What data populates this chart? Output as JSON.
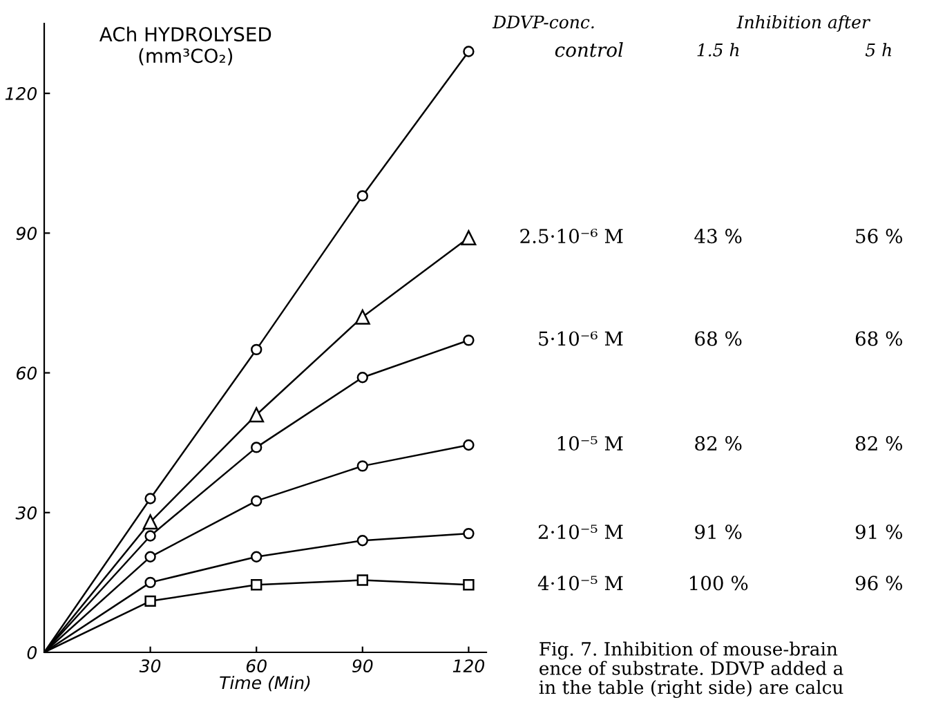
{
  "chart_data": {
    "type": "line",
    "ylabel": "ACh HYDROLYSED\n(mm³CO₂)",
    "xlabel": "Time (Min)",
    "x": [
      0,
      30,
      60,
      90,
      120
    ],
    "series": [
      {
        "name": "control",
        "color": "#000000",
        "marker": "circle",
        "values": [
          0,
          33,
          65,
          98,
          129
        ]
      },
      {
        "name": "2.5·10⁻⁶ M",
        "color": "#000000",
        "marker": "triangle",
        "values": [
          0,
          28,
          51,
          72,
          89
        ]
      },
      {
        "name": "5·10⁻⁶ M",
        "color": "#000000",
        "marker": "circle",
        "values": [
          0,
          25,
          44,
          59,
          67
        ]
      },
      {
        "name": "10⁻⁵ M",
        "color": "#000000",
        "marker": "circle",
        "values": [
          0,
          20.5,
          32.5,
          40,
          44.5
        ]
      },
      {
        "name": "2·10⁻⁵ M",
        "color": "#000000",
        "marker": "circle",
        "values": [
          0,
          15,
          20.5,
          24,
          25.5
        ]
      },
      {
        "name": "4·10⁻⁵ M",
        "color": "#000000",
        "marker": "square",
        "values": [
          0,
          11,
          14.5,
          15.5,
          14.5
        ]
      }
    ],
    "xlim": [
      0,
      125
    ],
    "ylim": [
      0,
      135
    ],
    "xticks": [
      30,
      60,
      90,
      120
    ],
    "yticks": [
      0,
      30,
      60,
      90,
      120
    ],
    "grid": false,
    "legend": false,
    "annotations": [
      "DDVP-conc.",
      "Inhibition after",
      "1.5 h",
      "5 h",
      "43 %",
      "56 %",
      "68 %",
      "68 %",
      "82 %",
      "82 %",
      "91 %",
      "91 %",
      "100 %",
      "96 %",
      "Fig. 7. Inhibition of mouse-brain\nence of substrate. DDVP added a\nin the table (right side) are calcu"
    ]
  }
}
